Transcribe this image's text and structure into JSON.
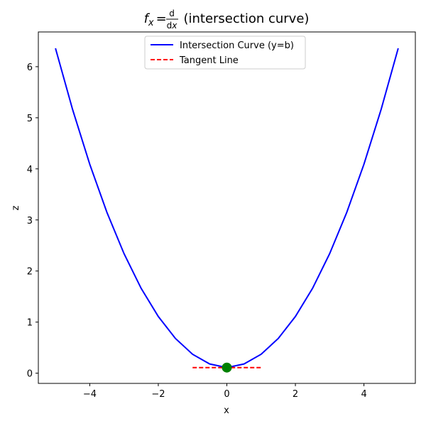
{
  "chart_data": {
    "type": "line",
    "title": {
      "prefix": "f",
      "prefix_subscript": "x",
      "equals": "=",
      "frac_numerator": "d",
      "frac_denominator_d": "d",
      "frac_denominator_var": "x",
      "suffix": "(intersection curve)"
    },
    "xlabel": "x",
    "ylabel": "z",
    "xlim": [
      -5.5,
      5.5
    ],
    "ylim": [
      -0.2,
      6.68
    ],
    "xticks": [
      {
        "value": -4,
        "label": "−4"
      },
      {
        "value": -2,
        "label": "−2"
      },
      {
        "value": 0,
        "label": "0"
      },
      {
        "value": 2,
        "label": "2"
      },
      {
        "value": 4,
        "label": "4"
      }
    ],
    "yticks": [
      {
        "value": 0,
        "label": "0"
      },
      {
        "value": 1,
        "label": "1"
      },
      {
        "value": 2,
        "label": "2"
      },
      {
        "value": 3,
        "label": "3"
      },
      {
        "value": 4,
        "label": "4"
      },
      {
        "value": 5,
        "label": "5"
      },
      {
        "value": 6,
        "label": "6"
      }
    ],
    "grid": false,
    "legend_position": "upper center",
    "series": [
      {
        "name": "Intersection Curve (y=b)",
        "color": "#0000ff",
        "style": "solid",
        "x": [
          -5,
          -4.5,
          -4,
          -3.5,
          -3,
          -2.5,
          -2,
          -1.5,
          -1,
          -0.5,
          0,
          0.5,
          1,
          1.5,
          2,
          2.5,
          3,
          3.5,
          4,
          4.5,
          5
        ],
        "y": [
          6.36,
          5.16,
          4.09,
          3.15,
          2.34,
          1.66,
          1.11,
          0.68,
          0.37,
          0.18,
          0.11,
          0.18,
          0.37,
          0.68,
          1.11,
          1.66,
          2.34,
          3.15,
          4.09,
          5.16,
          6.36
        ]
      },
      {
        "name": "Tangent Line",
        "color": "#ff0000",
        "style": "dashed",
        "x": [
          -1,
          1
        ],
        "y": [
          0.11,
          0.11
        ]
      }
    ],
    "points": [
      {
        "x": 0,
        "y": 0.11,
        "color": "#008000"
      }
    ]
  }
}
